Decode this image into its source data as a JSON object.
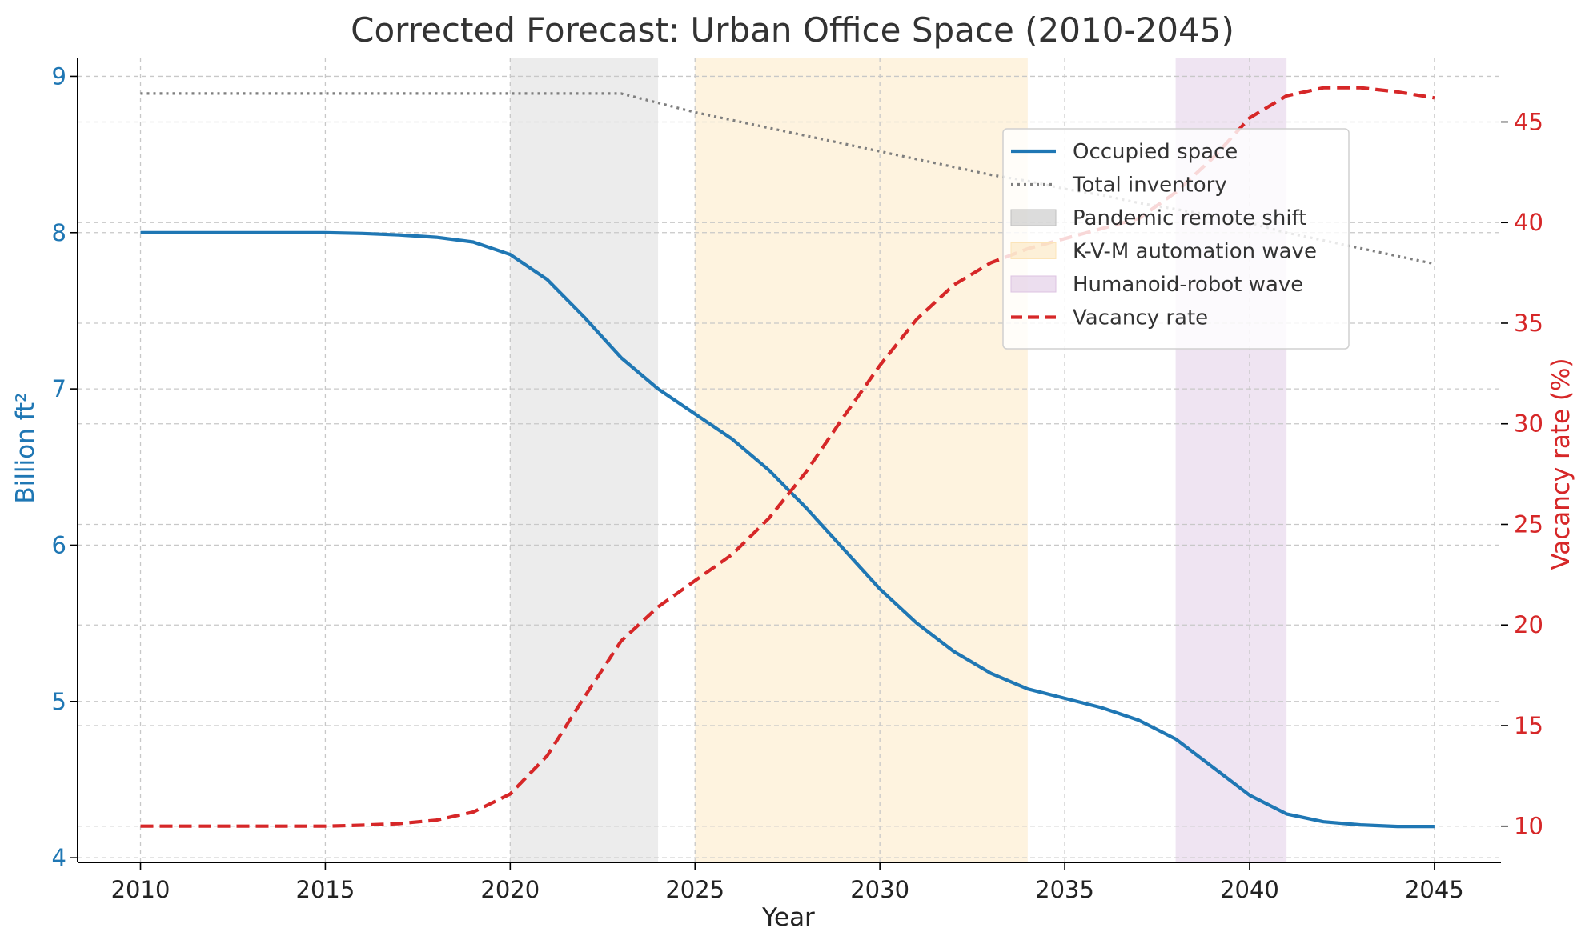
{
  "chart_data": {
    "type": "line",
    "title": "Corrected Forecast: Urban Office Space (2010-2045)",
    "xlabel": "Year",
    "ylabel_left": "Billion ft²",
    "ylabel_right": "Vacancy rate (%)",
    "xlim": [
      2008.3,
      2046.8
    ],
    "ylim_left": [
      3.97,
      9.12
    ],
    "ylim_right": [
      8.2,
      48.2
    ],
    "xticks": [
      2010,
      2015,
      2020,
      2025,
      2030,
      2035,
      2040,
      2045
    ],
    "yticks_left": [
      4,
      5,
      6,
      7,
      8,
      9
    ],
    "yticks_right": [
      10,
      15,
      20,
      25,
      30,
      35,
      40,
      45
    ],
    "grid": true,
    "legend_position": "upper-right",
    "x": [
      2010,
      2011,
      2012,
      2013,
      2014,
      2015,
      2016,
      2017,
      2018,
      2019,
      2020,
      2021,
      2022,
      2023,
      2024,
      2025,
      2026,
      2027,
      2028,
      2029,
      2030,
      2031,
      2032,
      2033,
      2034,
      2035,
      2036,
      2037,
      2038,
      2039,
      2040,
      2041,
      2042,
      2043,
      2044,
      2045
    ],
    "series": [
      {
        "name": "Occupied space",
        "axis": "left",
        "style": "solid",
        "color": "#1f77b4",
        "values": [
          8.0,
          8.0,
          8.0,
          8.0,
          8.0,
          8.0,
          7.995,
          7.985,
          7.97,
          7.94,
          7.86,
          7.7,
          7.46,
          7.2,
          7.0,
          6.84,
          6.68,
          6.48,
          6.24,
          5.98,
          5.72,
          5.5,
          5.32,
          5.18,
          5.08,
          5.02,
          4.96,
          4.88,
          4.76,
          4.58,
          4.4,
          4.28,
          4.23,
          4.21,
          4.2,
          4.2
        ]
      },
      {
        "name": "Total inventory",
        "axis": "left",
        "style": "dotted",
        "color": "#7f7f7f",
        "values": [
          8.89,
          8.89,
          8.89,
          8.89,
          8.89,
          8.89,
          8.89,
          8.89,
          8.89,
          8.89,
          8.89,
          8.89,
          8.89,
          8.89,
          8.83,
          8.77,
          8.72,
          8.67,
          8.62,
          8.57,
          8.52,
          8.47,
          8.42,
          8.37,
          8.33,
          8.28,
          8.24,
          8.19,
          8.15,
          8.11,
          8.06,
          8.0,
          7.95,
          7.9,
          7.85,
          7.8
        ]
      },
      {
        "name": "Vacancy rate",
        "axis": "right",
        "style": "dashed",
        "color": "#d62728",
        "values": [
          10.0,
          10.0,
          10.0,
          10.0,
          10.0,
          10.0,
          10.05,
          10.13,
          10.3,
          10.7,
          11.6,
          13.5,
          16.4,
          19.2,
          20.9,
          22.2,
          23.5,
          25.3,
          27.6,
          30.3,
          32.9,
          35.2,
          36.9,
          38.0,
          38.7,
          39.2,
          39.7,
          40.2,
          41.5,
          43.2,
          45.2,
          46.3,
          46.7,
          46.7,
          46.5,
          46.2
        ]
      }
    ],
    "shaded_regions": [
      {
        "name": "Pandemic remote shift",
        "from": 2020,
        "to": 2024,
        "color": "#bfbfbf",
        "opacity": 0.3
      },
      {
        "name": "K-V-M automation wave",
        "from": 2025,
        "to": 2034,
        "color": "#fce4b8",
        "opacity": 0.45
      },
      {
        "name": "Humanoid-robot wave",
        "from": 2038,
        "to": 2041,
        "color": "#dcc3e2",
        "opacity": 0.45
      }
    ],
    "legend": [
      {
        "label": "Occupied space",
        "kind": "line",
        "style": "solid",
        "color": "#1f77b4"
      },
      {
        "label": "Total inventory",
        "kind": "line",
        "style": "dotted",
        "color": "#7f7f7f"
      },
      {
        "label": "Pandemic remote shift",
        "kind": "patch",
        "color": "#bfbfbf"
      },
      {
        "label": "K-V-M automation wave",
        "kind": "patch",
        "color": "#fce4b8"
      },
      {
        "label": "Humanoid-robot wave",
        "kind": "patch",
        "color": "#dcc3e2"
      },
      {
        "label": "Vacancy rate",
        "kind": "line",
        "style": "dashed",
        "color": "#d62728"
      }
    ],
    "colors": {
      "left_axis": "#1f77b4",
      "right_axis": "#d62728",
      "text": "#333333",
      "grid": "#c8c8c8"
    }
  }
}
